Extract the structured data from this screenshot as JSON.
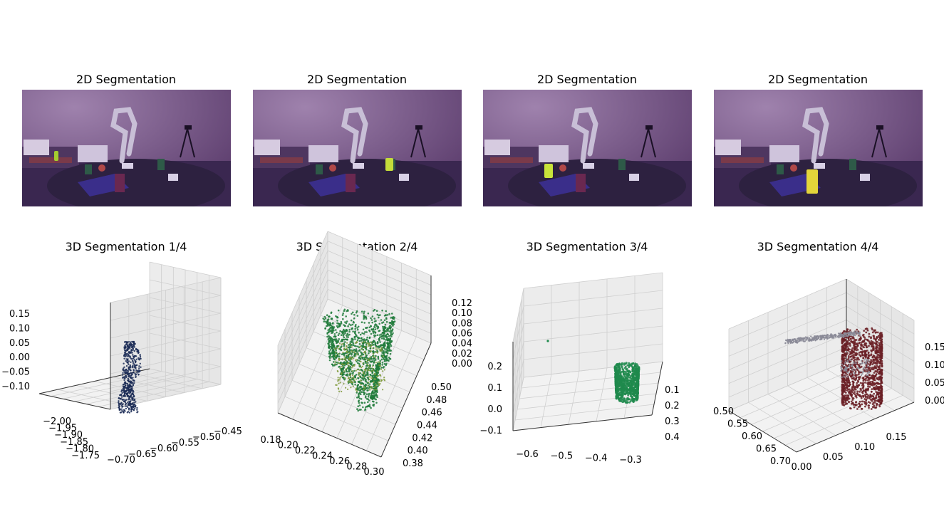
{
  "figure": {
    "panels_2d": [
      {
        "title": "2D Segmentation",
        "highlight_color": "#a4ce2f",
        "highlighted_object": "small-green-cup"
      },
      {
        "title": "2D Segmentation",
        "highlight_color": "#c4dc3a",
        "highlighted_object": "cup-near-screen"
      },
      {
        "title": "2D Segmentation",
        "highlight_color": "#c8e33a",
        "highlighted_object": "cup-left"
      },
      {
        "title": "2D Segmentation",
        "highlight_color": "#e3d53a",
        "highlighted_object": "cup-front"
      }
    ],
    "scene_colors": {
      "overlay": "#5c3a6a",
      "table": "#2d2140",
      "cloth": "#3a2e8a",
      "wall": "#7a5d8a"
    }
  },
  "chart_data": [
    {
      "type": "scatter",
      "title": "3D Segmentation 1/4",
      "point_color": "#1a2a55",
      "x_ticks": [
        "−2.00",
        "−1.95",
        "−1.90",
        "−1.85",
        "−1.80",
        "−1.75"
      ],
      "y_ticks": [
        "−0.45",
        "−0.50",
        "−0.55",
        "−0.60",
        "−0.65",
        "−0.70"
      ],
      "z_ticks": [
        "0.15",
        "0.10",
        "0.05",
        "0.00",
        "−0.05",
        "−0.10"
      ]
    },
    {
      "type": "scatter",
      "title": "3D Segmentation 2/4",
      "point_color": "#1e7a3a",
      "x_ticks": [
        "0.18",
        "0.20",
        "0.22",
        "0.24",
        "0.26",
        "0.28",
        "0.30"
      ],
      "y_ticks": [
        "0.38",
        "0.40",
        "0.42",
        "0.44",
        "0.46",
        "0.48",
        "0.50"
      ],
      "z_ticks": [
        "0.12",
        "0.10",
        "0.08",
        "0.06",
        "0.04",
        "0.02",
        "0.00"
      ]
    },
    {
      "type": "scatter",
      "title": "3D Segmentation 3/4",
      "point_color": "#1f8a4c",
      "x_ticks": [
        "−0.6",
        "−0.5",
        "−0.4",
        "−0.3"
      ],
      "y_ticks": [
        "0.1",
        "0.2",
        "0.3",
        "0.4"
      ],
      "z_ticks": [
        "0.2",
        "0.1",
        "0.0",
        "−0.1"
      ]
    },
    {
      "type": "scatter",
      "title": "3D Segmentation 4/4",
      "point_color": "#6a1e24",
      "x_ticks": [
        "0.00",
        "0.05",
        "0.10",
        "0.15"
      ],
      "y_ticks": [
        "0.50",
        "0.55",
        "0.60",
        "0.65",
        "0.70"
      ],
      "z_ticks": [
        "0.15",
        "0.10",
        "0.05",
        "0.00"
      ]
    }
  ]
}
